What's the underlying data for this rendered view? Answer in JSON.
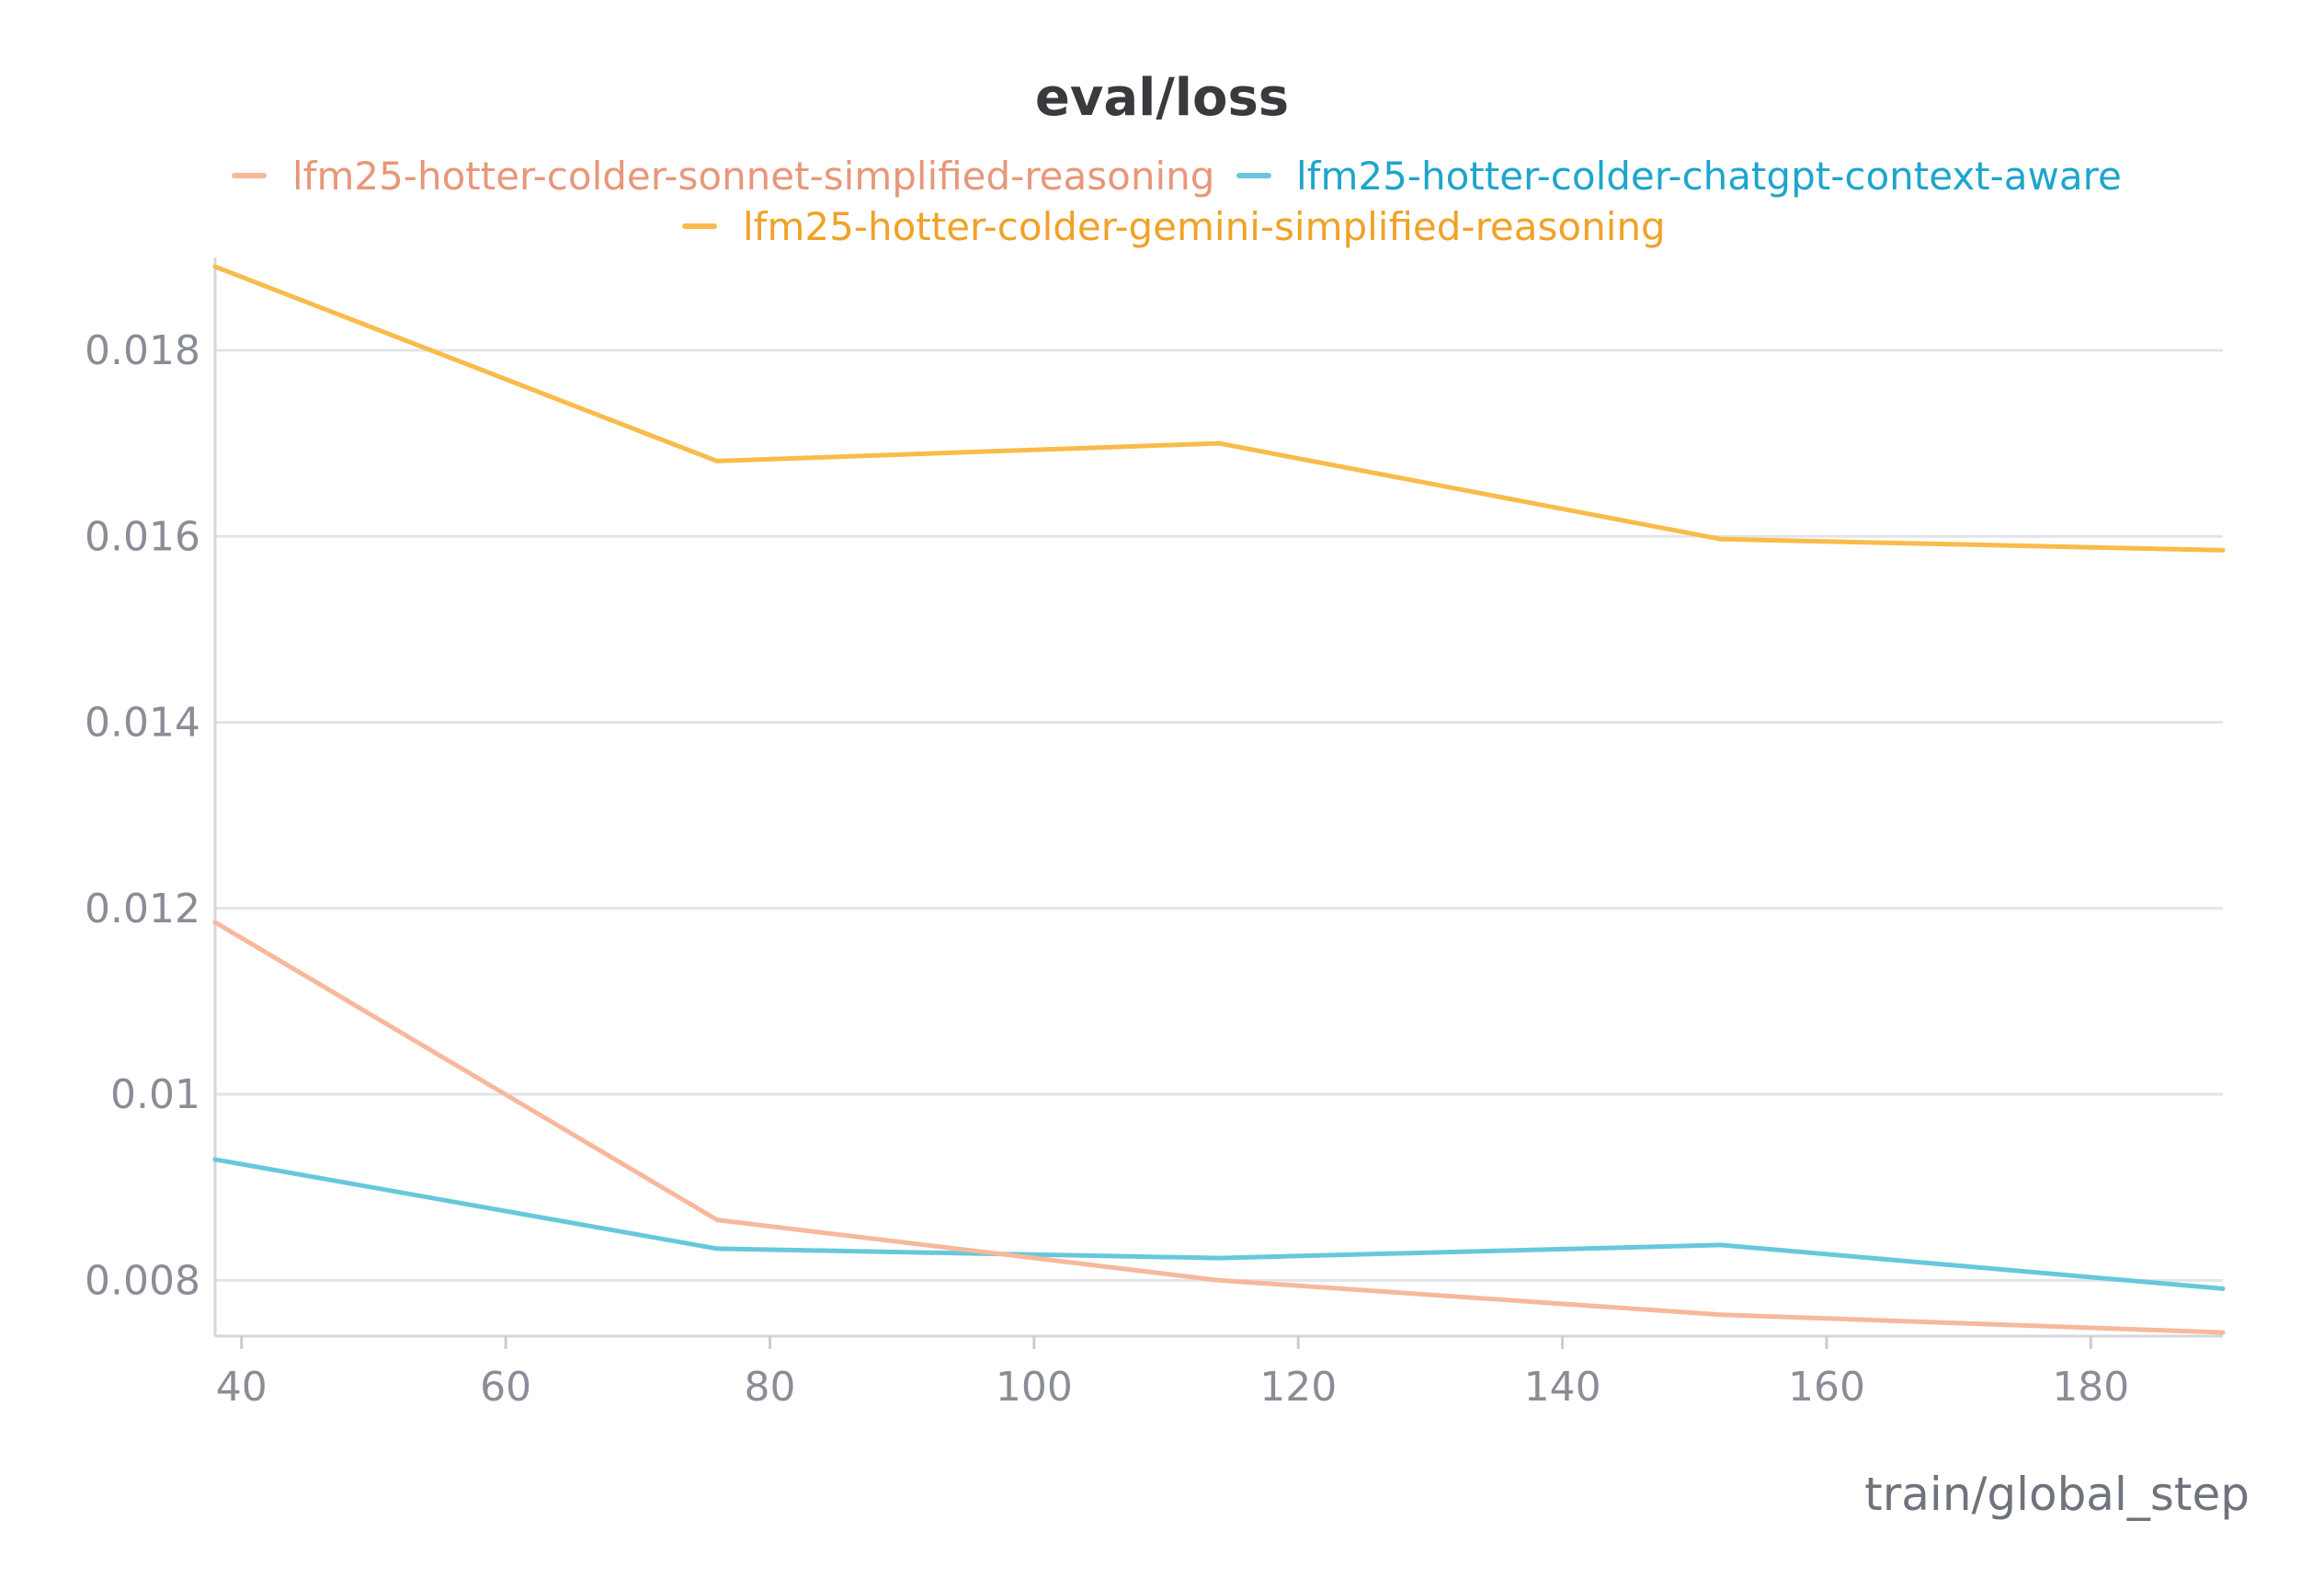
{
  "chart_data": {
    "type": "line",
    "title": "eval/loss",
    "xlabel": "train/global_step",
    "ylabel": "",
    "xlim": [
      38,
      190
    ],
    "ylim": [
      0.0074,
      0.0189
    ],
    "x_ticks": [
      40,
      60,
      80,
      100,
      120,
      140,
      160,
      180
    ],
    "x_tick_labels": [
      "40",
      "60",
      "80",
      "100",
      "120",
      "140",
      "160",
      "180"
    ],
    "y_ticks": [
      0.008,
      0.01,
      0.012,
      0.014,
      0.016,
      0.018
    ],
    "y_tick_labels": [
      "0.008",
      "0.01",
      "0.012",
      "0.014",
      "0.016",
      "0.018"
    ],
    "grid": "horizontal",
    "legend_position": "top-center",
    "series": [
      {
        "name": "lfm25-hotter-colder-sonnet-simplified-reasoning",
        "color": "#f7b89c",
        "legend_text_color": "#e8977a",
        "x": [
          38,
          76,
          114,
          152,
          190
        ],
        "y": [
          0.01185,
          0.00865,
          0.008,
          0.00763,
          0.00744
        ]
      },
      {
        "name": "lfm25-hotter-colder-chatgpt-context-aware",
        "color": "#67c8dc",
        "legend_text_color": "#1ea5cc",
        "x": [
          38,
          76,
          114,
          152,
          190
        ],
        "y": [
          0.0093,
          0.00834,
          0.00824,
          0.00838,
          0.00791
        ]
      },
      {
        "name": "lfm25-hotter-colder-gemini-simplified-reasoning",
        "color": "#f9bb4a",
        "legend_text_color": "#f0a228",
        "x": [
          38,
          76,
          114,
          152,
          190
        ],
        "y": [
          0.0189,
          0.01681,
          0.017,
          0.01597,
          0.01585
        ]
      }
    ]
  }
}
